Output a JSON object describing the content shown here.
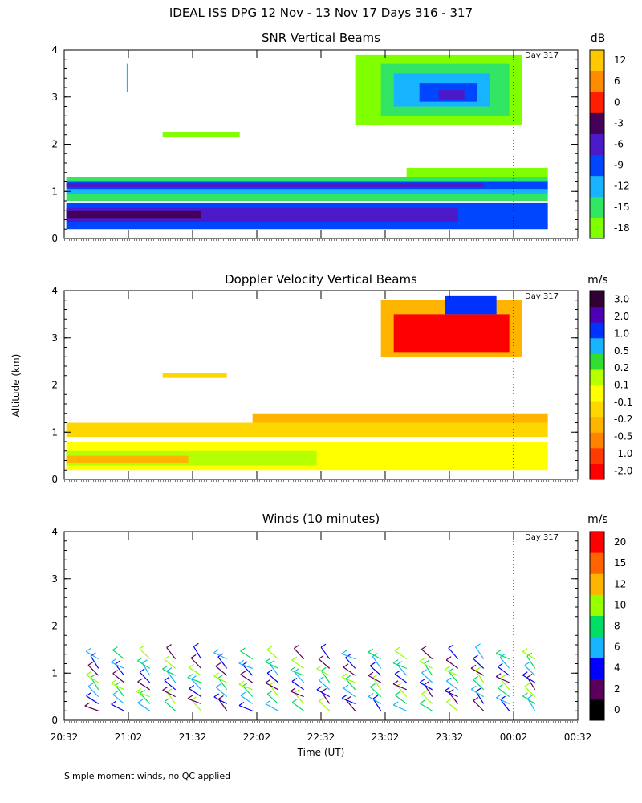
{
  "figure": {
    "title": "IDEAL ISS DPG  12 Nov - 13 Nov 17 Days 316 - 317",
    "ylabel": "Altitude (km)",
    "xlabel": "Time (UT)",
    "footnote": "Simple moment winds, no QC applied",
    "day_marker_label": "Day 317"
  },
  "chart_data": [
    {
      "type": "heatmap",
      "title": "SNR Vertical Beams",
      "colorbar_unit": "dB",
      "colorbar_ticks": [
        "-18",
        "-15",
        "-12",
        "-9",
        "-6",
        "-3",
        "0",
        "6",
        "12"
      ],
      "colorbar_colors": [
        "#7fff00",
        "#32e664",
        "#19b4ff",
        "#0046ff",
        "#4b19c8",
        "#46005a",
        "#ff1e00",
        "#ff8c00",
        "#ffc800"
      ],
      "x_ticks": [
        "20:32",
        "21:02",
        "21:32",
        "22:02",
        "22:32",
        "23:02",
        "23:32",
        "00:02",
        "00:32"
      ],
      "y_ticks": [
        "0",
        "1",
        "2",
        "3",
        "4"
      ],
      "ylim": [
        0,
        4
      ],
      "layers": [
        {
          "t0": 20.55,
          "t1": 24.3,
          "y0": 0.2,
          "y1": 0.75,
          "color": "#0046ff"
        },
        {
          "t0": 20.55,
          "t1": 23.6,
          "y0": 0.35,
          "y1": 0.65,
          "color": "#4b19c8"
        },
        {
          "t0": 20.55,
          "t1": 21.6,
          "y0": 0.42,
          "y1": 0.58,
          "color": "#46005a"
        },
        {
          "t0": 20.55,
          "t1": 24.3,
          "y0": 0.8,
          "y1": 0.95,
          "color": "#32e664"
        },
        {
          "t0": 20.55,
          "t1": 24.3,
          "y0": 0.95,
          "y1": 1.05,
          "color": "#19b4ff"
        },
        {
          "t0": 20.55,
          "t1": 24.3,
          "y0": 1.05,
          "y1": 1.2,
          "color": "#0046ff"
        },
        {
          "t0": 20.55,
          "t1": 23.8,
          "y0": 1.09,
          "y1": 1.17,
          "color": "#4b19c8"
        },
        {
          "t0": 20.55,
          "t1": 24.3,
          "y0": 1.2,
          "y1": 1.3,
          "color": "#32e664"
        },
        {
          "t0": 23.2,
          "t1": 24.3,
          "y0": 1.3,
          "y1": 1.5,
          "color": "#7fff00"
        },
        {
          "t0": 21.3,
          "t1": 21.9,
          "y0": 2.15,
          "y1": 2.25,
          "color": "#7fff00"
        },
        {
          "t0": 21.02,
          "t1": 21.03,
          "y0": 3.1,
          "y1": 3.7,
          "color": "#19b4ff"
        },
        {
          "t0": 22.8,
          "t1": 24.1,
          "y0": 2.4,
          "y1": 3.9,
          "color": "#7fff00"
        },
        {
          "t0": 23.0,
          "t1": 24.0,
          "y0": 2.6,
          "y1": 3.7,
          "color": "#32e664"
        },
        {
          "t0": 23.1,
          "t1": 23.85,
          "y0": 2.8,
          "y1": 3.5,
          "color": "#19b4ff"
        },
        {
          "t0": 23.3,
          "t1": 23.75,
          "y0": 2.9,
          "y1": 3.3,
          "color": "#0046ff"
        },
        {
          "t0": 23.45,
          "t1": 23.65,
          "y0": 2.95,
          "y1": 3.15,
          "color": "#4b19c8"
        }
      ]
    },
    {
      "type": "heatmap",
      "title": "Doppler Velocity Vertical Beams",
      "colorbar_unit": "m/s",
      "colorbar_ticks": [
        "-2.0",
        "-1.0",
        "-0.5",
        "-0.2",
        "-0.1",
        "0.1",
        "0.2",
        "0.5",
        "1.0",
        "2.0",
        "3.0"
      ],
      "colorbar_colors": [
        "#ff0000",
        "#ff3c00",
        "#ff8200",
        "#ffb400",
        "#ffd700",
        "#ffff00",
        "#b4ff00",
        "#32dc32",
        "#19b4ff",
        "#0032ff",
        "#5000b4",
        "#320032"
      ],
      "x_ticks": [
        "20:32",
        "21:02",
        "21:32",
        "22:02",
        "22:32",
        "23:02",
        "23:32",
        "00:02",
        "00:32"
      ],
      "y_ticks": [
        "0",
        "1",
        "2",
        "3",
        "4"
      ],
      "ylim": [
        0,
        4
      ],
      "layers": [
        {
          "t0": 20.55,
          "t1": 24.3,
          "y0": 0.2,
          "y1": 0.8,
          "color": "#ffff00"
        },
        {
          "t0": 20.55,
          "t1": 22.5,
          "y0": 0.3,
          "y1": 0.6,
          "color": "#b4ff00"
        },
        {
          "t0": 20.55,
          "t1": 21.5,
          "y0": 0.35,
          "y1": 0.5,
          "color": "#ffb400"
        },
        {
          "t0": 20.55,
          "t1": 24.3,
          "y0": 0.9,
          "y1": 1.2,
          "color": "#ffd700"
        },
        {
          "t0": 22.0,
          "t1": 24.3,
          "y0": 1.2,
          "y1": 1.4,
          "color": "#ffb400"
        },
        {
          "t0": 21.3,
          "t1": 21.8,
          "y0": 2.15,
          "y1": 2.25,
          "color": "#ffd700"
        },
        {
          "t0": 23.0,
          "t1": 24.1,
          "y0": 2.6,
          "y1": 3.8,
          "color": "#ffb400"
        },
        {
          "t0": 23.1,
          "t1": 24.0,
          "y0": 2.7,
          "y1": 3.5,
          "color": "#ff0000"
        },
        {
          "t0": 23.5,
          "t1": 23.9,
          "y0": 3.5,
          "y1": 3.9,
          "color": "#0032ff"
        }
      ]
    },
    {
      "type": "barbs",
      "title": "Winds (10 minutes)",
      "colorbar_unit": "m/s",
      "colorbar_ticks": [
        "0",
        "2",
        "4",
        "6",
        "8",
        "10",
        "12",
        "15",
        "20"
      ],
      "colorbar_colors": [
        "#000000",
        "#5a005a",
        "#0000ff",
        "#19b4ff",
        "#00dc64",
        "#96ff00",
        "#ffb400",
        "#ff6400",
        "#ff0000"
      ],
      "x_ticks": [
        "20:32",
        "21:02",
        "21:32",
        "22:02",
        "22:32",
        "23:02",
        "23:32",
        "00:02",
        "00:32"
      ],
      "y_ticks": [
        "0",
        "1",
        "2",
        "3",
        "4"
      ],
      "ylim": [
        0,
        4
      ],
      "barb_times": [
        20.8,
        21.0,
        21.2,
        21.4,
        21.6,
        21.8,
        22.0,
        22.2,
        22.4,
        22.6,
        22.8,
        23.0,
        23.2,
        23.4,
        23.6,
        23.8,
        24.0,
        24.2
      ],
      "barb_heights": [
        0.2,
        0.35,
        0.5,
        0.65,
        0.8,
        0.95,
        1.1,
        1.3
      ]
    }
  ]
}
